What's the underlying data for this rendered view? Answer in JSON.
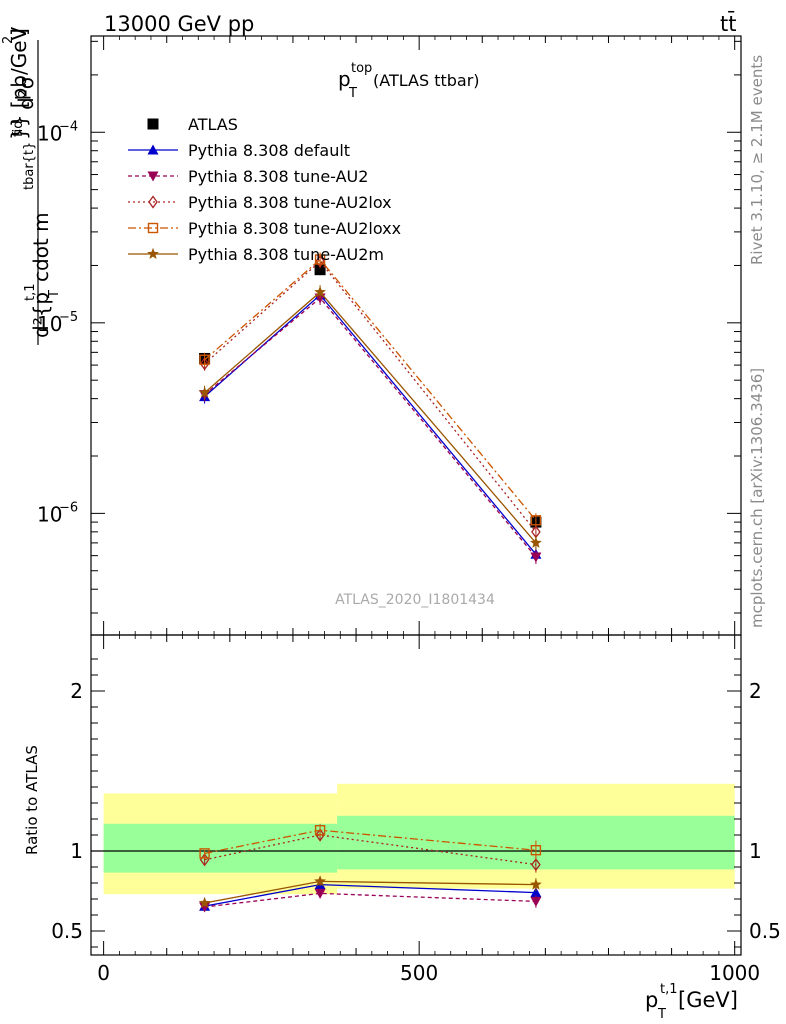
{
  "header": {
    "energy_label": "13000 GeV pp",
    "process_label": "tt̄"
  },
  "side_labels": {
    "rivet": "Rivet 3.1.10, ≥ 2.1M events",
    "mcplots": "mcplots.cern.ch [arXiv:1306.3436]"
  },
  "chart_data": [
    {
      "type": "line",
      "panel": "main",
      "title_main": "p",
      "title_sup": "top",
      "title_sub": "T",
      "title_suffix": " (ATLAS ttbar)",
      "ylabel": "d²σ^{fid} / d²{p_T^{t,1} cdot m^{tbar{t}}} [pb/GeV²]",
      "ylabel_parts": {
        "num": "d²σ",
        "num_sup": "fid",
        "den_pre": "d²{p",
        "den_sup": "t,1",
        "den_sub": "T",
        "den_mid": " cdot m",
        "den_sup2": "tbar{t}",
        "den_post": "}} [pb/GeV²]",
        "top_post": "}} [pb/GeV"
      },
      "yscale": "log",
      "ylim": [
        2.3e-07,
        0.00032
      ],
      "xlim": [
        -20,
        1010
      ],
      "yticks": [
        {
          "value": 1e-06,
          "base": "10",
          "exp": "−6"
        },
        {
          "value": 1e-05,
          "base": "10",
          "exp": "−5"
        },
        {
          "value": 0.0001,
          "base": "10",
          "exp": "−4"
        }
      ],
      "watermark": "ATLAS_2020_I1801434",
      "legend_position": "top-left",
      "x": [
        160,
        343,
        685
      ],
      "series": [
        {
          "name": "ATLAS",
          "values": [
            6.5e-06,
            1.9e-05,
            9e-07
          ],
          "color": "#000000",
          "marker": "square",
          "dash": "none"
        },
        {
          "name": "Pythia 8.308 default",
          "values": [
            4.1e-06,
            1.4e-05,
            6.1e-07
          ],
          "color": "#0000cc",
          "marker": "triangle-up",
          "dash": "solid"
        },
        {
          "name": "Pythia 8.308 tune-AU2",
          "values": [
            4.2e-06,
            1.35e-05,
            5.9e-07
          ],
          "color": "#990055",
          "marker": "triangle-down",
          "dash": "4,3"
        },
        {
          "name": "Pythia 8.308 tune-AU2lox",
          "values": [
            6.1e-06,
            2.1e-05,
            8e-07
          ],
          "color": "#aa2222",
          "marker": "diamond-open",
          "dash": "2,3"
        },
        {
          "name": "Pythia 8.308 tune-AU2loxx",
          "values": [
            6.4e-06,
            2.15e-05,
            9.2e-07
          ],
          "color": "#cc5500",
          "marker": "square-open",
          "dash": "8,3,2,3"
        },
        {
          "name": "Pythia 8.308 tune-AU2m",
          "values": [
            4.3e-06,
            1.45e-05,
            7e-07
          ],
          "color": "#995500",
          "marker": "star",
          "dash": "solid"
        }
      ]
    },
    {
      "type": "line",
      "panel": "ratio",
      "ylabel": "Ratio to ATLAS",
      "ylim": [
        0.35,
        2.35
      ],
      "xlim": [
        -20,
        1010
      ],
      "yticks": [
        {
          "value": 0.5,
          "label": "0.5"
        },
        {
          "value": 1,
          "label": "1"
        },
        {
          "value": 2,
          "label": "2"
        }
      ],
      "xticks": [
        {
          "value": 0,
          "label": "0"
        },
        {
          "value": 500,
          "label": "500"
        },
        {
          "value": 1000,
          "label": "1000"
        }
      ],
      "xlabel_parts": {
        "base": "p",
        "sup": "t,1",
        "sub": "T",
        "unit": " [GeV]"
      },
      "bands": [
        {
          "x0": 0,
          "x1": 370,
          "stat_lo": 0.865,
          "stat_hi": 1.17,
          "tot_lo": 0.73,
          "tot_hi": 1.36
        },
        {
          "x0": 370,
          "x1": 1000,
          "stat_lo": 0.885,
          "stat_hi": 1.22,
          "tot_lo": 0.765,
          "tot_hi": 1.42
        }
      ],
      "x": [
        160,
        343,
        685
      ],
      "series": [
        {
          "name": "Pythia 8.308 default",
          "values": [
            0.655,
            0.79,
            0.74
          ],
          "err": [
            0.02,
            0.02,
            0.02
          ]
        },
        {
          "name": "Pythia 8.308 tune-AU2",
          "values": [
            0.65,
            0.735,
            0.685
          ],
          "err": [
            0.02,
            0.03,
            0.04
          ]
        },
        {
          "name": "Pythia 8.308 tune-AU2lox",
          "values": [
            0.945,
            1.1,
            0.915
          ],
          "err": [
            0.03,
            0.04,
            0.05
          ]
        },
        {
          "name": "Pythia 8.308 tune-AU2loxx",
          "values": [
            0.985,
            1.13,
            1.005
          ],
          "err": [
            0.02,
            0.04,
            0.06
          ]
        },
        {
          "name": "Pythia 8.308 tune-AU2m",
          "values": [
            0.675,
            0.81,
            0.79
          ],
          "err": [
            0.02,
            0.03,
            0.04
          ]
        }
      ]
    }
  ]
}
